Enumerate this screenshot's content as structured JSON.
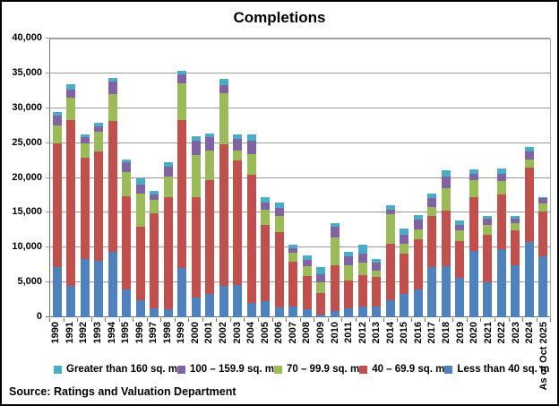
{
  "chart": {
    "title": "Completions"
  },
  "source": "Source: Ratings and Valuation Department",
  "chart_data": {
    "type": "bar",
    "stacked": true,
    "title": "Completions",
    "xlabel": "",
    "ylabel": "",
    "ylim": [
      0,
      40000
    ],
    "y_tick_step": 5000,
    "y_tick_labels": [
      "0",
      "5,000",
      "10,000",
      "15,000",
      "20,000",
      "25,000",
      "30,000",
      "35,000",
      "40,000"
    ],
    "grid": "horizontal",
    "legend_position": "bottom",
    "categories": [
      "1990",
      "1991",
      "1992",
      "1993",
      "1994",
      "1995",
      "1996",
      "1997",
      "1998",
      "1999",
      "2000",
      "2001",
      "2002",
      "2003",
      "2004",
      "2005",
      "2006",
      "2007",
      "2008",
      "2009",
      "2010",
      "2011",
      "2012",
      "2013",
      "2014",
      "2015",
      "2016",
      "2017",
      "2018",
      "2019",
      "2020",
      "2021",
      "2022",
      "2023",
      "2024",
      "As of Oct 2025"
    ],
    "series": [
      {
        "name": "Less than 40 sq. m",
        "color": "#4F81BD",
        "values": [
          7200,
          4500,
          8400,
          8100,
          9400,
          4000,
          2500,
          1300,
          1200,
          7100,
          2800,
          3300,
          4500,
          4600,
          2000,
          2300,
          1400,
          1500,
          1200,
          400,
          900,
          1300,
          1600,
          1600,
          2400,
          3400,
          4000,
          7200,
          7300,
          5700,
          9500,
          5000,
          9800,
          7500,
          10800,
          8800
        ]
      },
      {
        "name": "40 – 69.9 sq. m",
        "color": "#C0504D",
        "values": [
          17700,
          23800,
          14500,
          15700,
          18800,
          13400,
          10500,
          13600,
          16000,
          21200,
          14500,
          16400,
          20300,
          17900,
          18500,
          11000,
          10800,
          6500,
          4700,
          3100,
          6500,
          4000,
          4500,
          4200,
          8100,
          5700,
          7200,
          7300,
          8000,
          5200,
          7800,
          6800,
          7800,
          5000,
          10700,
          6400
        ]
      },
      {
        "name": "70 – 99.9 sq. m",
        "color": "#9BBB59",
        "values": [
          2600,
          3200,
          2100,
          2800,
          3800,
          3500,
          4800,
          2000,
          3000,
          5300,
          6000,
          4200,
          7400,
          1400,
          2900,
          2100,
          2300,
          1300,
          1400,
          1500,
          4100,
          2200,
          1700,
          900,
          4300,
          1500,
          1450,
          1300,
          3200,
          1600,
          2400,
          1500,
          2000,
          1000,
          1200,
          1200
        ]
      },
      {
        "name": "100 – 159.9 sq. m",
        "color": "#8064A2",
        "values": [
          1400,
          1200,
          800,
          750,
          1800,
          1300,
          1300,
          700,
          1400,
          1200,
          2000,
          1900,
          1100,
          1700,
          1900,
          1100,
          1200,
          600,
          1000,
          1200,
          1500,
          1300,
          1300,
          1100,
          650,
          1200,
          1350,
          1300,
          1700,
          800,
          900,
          800,
          1000,
          700,
          1100,
          700
        ]
      },
      {
        "name": "Greater than 160 sq. m",
        "color": "#4BACC6",
        "values": [
          600,
          800,
          500,
          550,
          500,
          500,
          800,
          600,
          700,
          600,
          700,
          600,
          900,
          700,
          900,
          700,
          800,
          500,
          600,
          1000,
          500,
          600,
          1300,
          500,
          650,
          1000,
          700,
          700,
          900,
          600,
          600,
          400,
          700,
          400,
          700,
          200
        ]
      }
    ],
    "legend": [
      {
        "label": "Greater than 160 sq. m",
        "color": "#4BACC6"
      },
      {
        "label": "100 – 159.9 sq. m",
        "color": "#8064A2"
      },
      {
        "label": "70 – 99.9 sq. m",
        "color": "#9BBB59"
      },
      {
        "label": "40 – 69.9 sq. m",
        "color": "#C0504D"
      },
      {
        "label": "Less than 40 sq. m",
        "color": "#4F81BD"
      }
    ]
  }
}
